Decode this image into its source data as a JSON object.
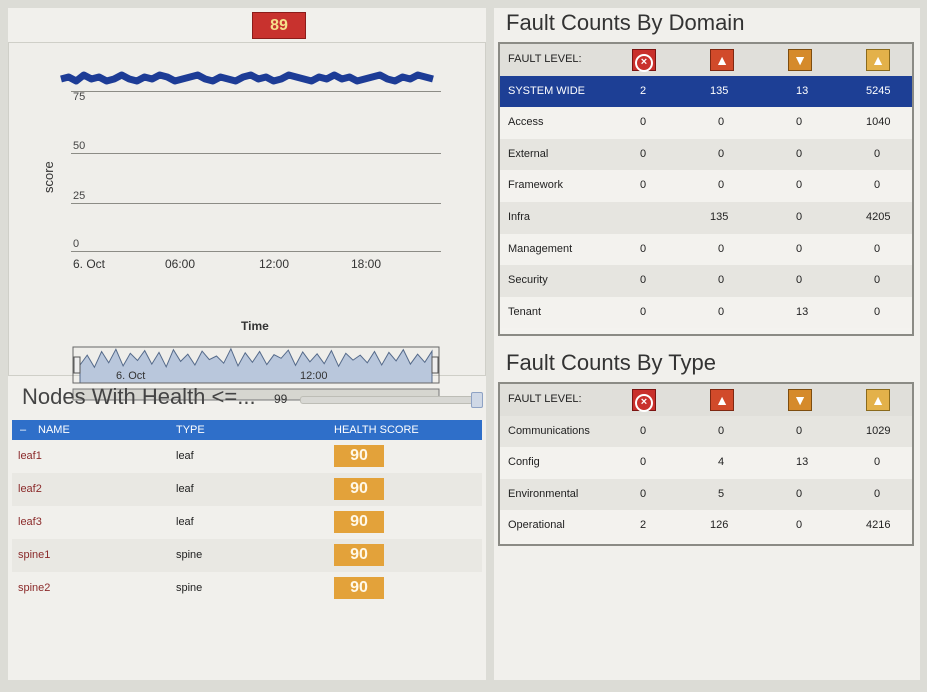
{
  "health_score": "89",
  "chart_data": {
    "type": "line",
    "ylabel": "score",
    "xlabel": "Time",
    "y_ticks": [
      "0",
      "25",
      "50",
      "75"
    ],
    "x_ticks": [
      "6. Oct",
      "06:00",
      "12:00",
      "18:00"
    ],
    "ylim": [
      0,
      100
    ],
    "series": [
      {
        "values": [
          86,
          87,
          85,
          88,
          86,
          87,
          85,
          86,
          88,
          86,
          85,
          87,
          86,
          88,
          87,
          85,
          86,
          87,
          88,
          86,
          85,
          87,
          86,
          85,
          87,
          88,
          86,
          87,
          85,
          86,
          88,
          87,
          86,
          85,
          87,
          86,
          88,
          86,
          87,
          85,
          86,
          87,
          88,
          86,
          85,
          87,
          86,
          88,
          87,
          86
        ]
      }
    ],
    "brush": {
      "x_ticks": [
        "6. Oct",
        "12:00"
      ],
      "values": [
        40,
        62,
        35,
        70,
        45,
        75,
        38,
        66,
        50,
        72,
        42,
        68,
        36,
        74,
        48,
        64,
        40,
        71,
        52,
        60,
        44,
        76,
        38,
        67,
        46,
        70,
        41,
        63,
        55,
        73,
        39,
        69,
        47,
        65,
        43,
        72,
        37,
        66,
        51,
        62,
        45,
        70,
        40,
        68,
        49,
        74,
        42,
        64,
        46,
        71
      ]
    }
  },
  "nodes": {
    "title": "Nodes With Health <=...",
    "threshold": "99",
    "columns": [
      "NAME",
      "TYPE",
      "HEALTH SCORE"
    ],
    "rows": [
      {
        "name": "leaf1",
        "type": "leaf",
        "score": "90"
      },
      {
        "name": "leaf2",
        "type": "leaf",
        "score": "90"
      },
      {
        "name": "leaf3",
        "type": "leaf",
        "score": "90"
      },
      {
        "name": "spine1",
        "type": "spine",
        "score": "90"
      },
      {
        "name": "spine2",
        "type": "spine",
        "score": "90"
      }
    ]
  },
  "fault_domain": {
    "title": "Fault Counts By Domain",
    "level_label": "FAULT LEVEL:",
    "icons": [
      "critical-icon",
      "major-icon",
      "minor-icon",
      "warning-icon"
    ],
    "rows": [
      {
        "label": "SYSTEM WIDE",
        "values": [
          "2",
          "135",
          "13",
          "5245"
        ]
      },
      {
        "label": "Access",
        "values": [
          "0",
          "0",
          "0",
          "1040"
        ]
      },
      {
        "label": "External",
        "values": [
          "0",
          "0",
          "0",
          "0"
        ]
      },
      {
        "label": "Framework",
        "values": [
          "0",
          "0",
          "0",
          "0"
        ]
      },
      {
        "label": "Infra",
        "values": [
          "",
          "135",
          "0",
          "4205"
        ]
      },
      {
        "label": "Management",
        "values": [
          "0",
          "0",
          "0",
          "0"
        ]
      },
      {
        "label": "Security",
        "values": [
          "0",
          "0",
          "0",
          "0"
        ]
      },
      {
        "label": "Tenant",
        "values": [
          "0",
          "0",
          "13",
          "0"
        ]
      }
    ]
  },
  "fault_type": {
    "title": "Fault Counts By Type",
    "level_label": "FAULT LEVEL:",
    "rows": [
      {
        "label": "Communications",
        "values": [
          "0",
          "0",
          "0",
          "1029"
        ]
      },
      {
        "label": "Config",
        "values": [
          "0",
          "4",
          "13",
          "0"
        ]
      },
      {
        "label": "Environmental",
        "values": [
          "0",
          "5",
          "0",
          "0"
        ]
      },
      {
        "label": "Operational",
        "values": [
          "2",
          "126",
          "0",
          "4216"
        ]
      }
    ]
  }
}
